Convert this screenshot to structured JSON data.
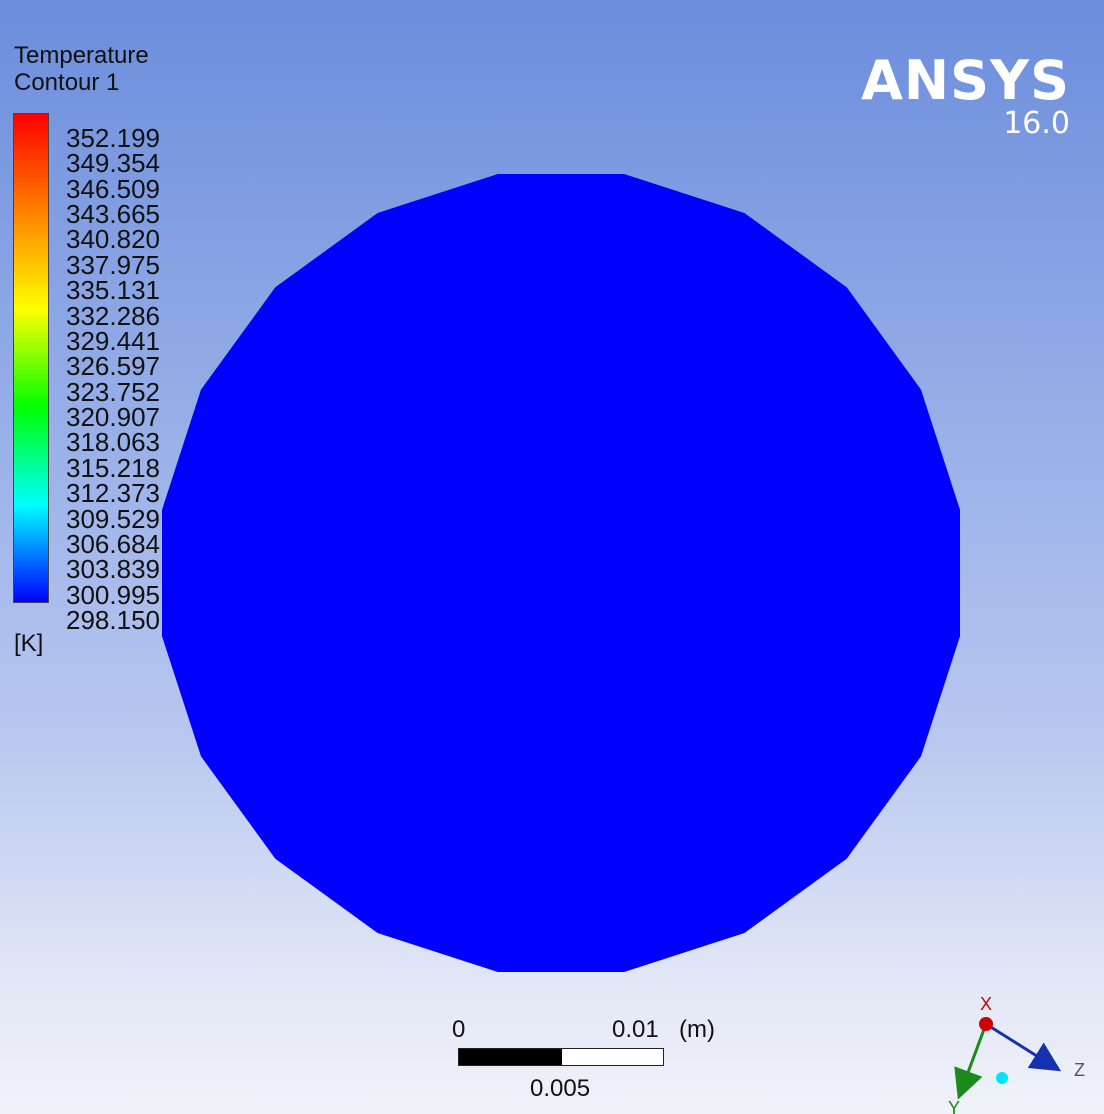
{
  "legend": {
    "title_line1": "Temperature",
    "title_line2": "Contour 1",
    "labels": [
      "352.199",
      "349.354",
      "346.509",
      "343.665",
      "340.820",
      "337.975",
      "335.131",
      "332.286",
      "329.441",
      "326.597",
      "323.752",
      "320.907",
      "318.063",
      "315.218",
      "312.373",
      "309.529",
      "306.684",
      "303.839",
      "300.995",
      "298.150"
    ],
    "unit": "[K]",
    "colormap": [
      "#ff0000",
      "#ff8000",
      "#ffff00",
      "#00ff00",
      "#00ffff",
      "#0000ff"
    ]
  },
  "logo": {
    "name": "ANSYS",
    "version": "16.0"
  },
  "domain": {
    "fill_color": "#0000ff"
  },
  "scale_bar": {
    "label_start": "0",
    "label_end": "0.01",
    "unit": "(m)",
    "label_mid": "0.005"
  },
  "triad": {
    "x_label": "X",
    "y_label": "Y",
    "z_label": "Z",
    "x_color": "#d00000",
    "y_color": "#1a8a1a",
    "z_color": "#1530b0",
    "origin_color": "#00e5ff"
  }
}
